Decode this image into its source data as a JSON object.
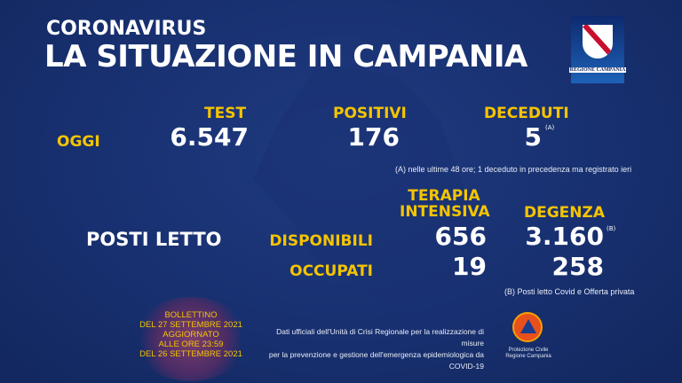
{
  "header": {
    "subtitle": "CORONAVIRUS",
    "title": "LA SITUAZIONE IN CAMPANIA"
  },
  "logo": {
    "text": "REGIONE CAMPANIA"
  },
  "today": {
    "label": "OGGI",
    "test_label": "TEST",
    "test": "6.547",
    "positivi_label": "POSITIVI",
    "positivi": "176",
    "deceduti_label": "DECEDUTI",
    "deceduti": "5",
    "deceduti_sup": "(A)",
    "note": "(A) nelle ultime 48 ore; 1 deceduto in precedenza ma registrato ieri"
  },
  "beds": {
    "label": "POSTI LETTO",
    "ti_label_1": "TERAPIA",
    "ti_label_2": "INTENSIVA",
    "degenza_label": "DEGENZA",
    "disponibili_label": "DISPONIBILI",
    "occupati_label": "OCCUPATI",
    "ti_disp": "656",
    "deg_disp": "3.160",
    "deg_sup": "(B)",
    "ti_occ": "19",
    "deg_occ": "258",
    "note": "(B) Posti letto Covid e Offerta privata"
  },
  "bulletin": [
    "BOLLETTINO",
    "DEL 27 SETTEMBRE 2021",
    "AGGIORNATO",
    "ALLE ORE 23:59",
    "DEL 26 SETTEMBRE 2021"
  ],
  "footer": {
    "line1": "Dati ufficiali dell'Unità di Crisi Regionale per la realizzazione di misure",
    "line2": "per la prevenzione e gestione dell'emergenza epidemiologica da COVID-19"
  },
  "protezione": {
    "line1": "Protezione Civile",
    "line2": "Regione Campania"
  },
  "colors": {
    "accent": "#f5c400",
    "background": "#172f6e"
  }
}
